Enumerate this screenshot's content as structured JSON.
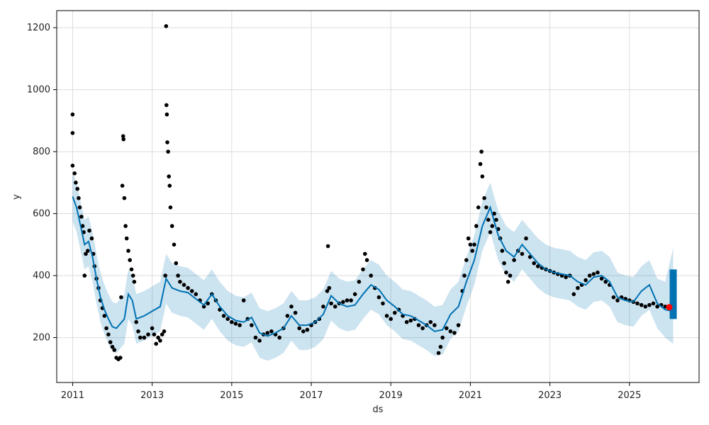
{
  "chart_data": {
    "type": "line",
    "xlabel": "ds",
    "ylabel": "y",
    "xlim": [
      2010.6,
      2026.75
    ],
    "ylim": [
      55,
      1255
    ],
    "x_ticks": [
      2011,
      2013,
      2015,
      2017,
      2019,
      2021,
      2023,
      2025
    ],
    "y_ticks": [
      200,
      400,
      600,
      800,
      1000,
      1200
    ],
    "grid": true,
    "colors": {
      "observed": "#000000",
      "forecast_line": "#0072B2",
      "uncertainty_band": "#0072B2",
      "highlight_point": "#ff0000"
    },
    "series": [
      {
        "kind": "observed",
        "points": [
          [
            2011.0,
            920
          ],
          [
            2011.0,
            860
          ],
          [
            2011.0,
            755
          ],
          [
            2011.05,
            730
          ],
          [
            2011.08,
            700
          ],
          [
            2011.12,
            680
          ],
          [
            2011.15,
            650
          ],
          [
            2011.18,
            620
          ],
          [
            2011.22,
            590
          ],
          [
            2011.25,
            560
          ],
          [
            2011.28,
            540
          ],
          [
            2011.3,
            400
          ],
          [
            2011.33,
            470
          ],
          [
            2011.38,
            480
          ],
          [
            2011.42,
            545
          ],
          [
            2011.48,
            520
          ],
          [
            2011.52,
            470
          ],
          [
            2011.55,
            430
          ],
          [
            2011.6,
            390
          ],
          [
            2011.65,
            360
          ],
          [
            2011.7,
            320
          ],
          [
            2011.75,
            295
          ],
          [
            2011.8,
            270
          ],
          [
            2011.85,
            230
          ],
          [
            2011.9,
            210
          ],
          [
            2011.95,
            185
          ],
          [
            2012.0,
            170
          ],
          [
            2012.05,
            160
          ],
          [
            2012.1,
            135
          ],
          [
            2012.15,
            130
          ],
          [
            2012.2,
            135
          ],
          [
            2012.22,
            330
          ],
          [
            2012.25,
            690
          ],
          [
            2012.27,
            850
          ],
          [
            2012.28,
            840
          ],
          [
            2012.3,
            650
          ],
          [
            2012.33,
            560
          ],
          [
            2012.36,
            520
          ],
          [
            2012.4,
            480
          ],
          [
            2012.44,
            450
          ],
          [
            2012.48,
            420
          ],
          [
            2012.52,
            400
          ],
          [
            2012.55,
            380
          ],
          [
            2012.6,
            250
          ],
          [
            2012.65,
            220
          ],
          [
            2012.7,
            200
          ],
          [
            2012.8,
            200
          ],
          [
            2012.9,
            210
          ],
          [
            2013.0,
            230
          ],
          [
            2013.05,
            210
          ],
          [
            2013.1,
            180
          ],
          [
            2013.15,
            200
          ],
          [
            2013.2,
            190
          ],
          [
            2013.25,
            210
          ],
          [
            2013.3,
            220
          ],
          [
            2013.33,
            400
          ],
          [
            2013.35,
            1205
          ],
          [
            2013.36,
            950
          ],
          [
            2013.37,
            920
          ],
          [
            2013.38,
            830
          ],
          [
            2013.4,
            800
          ],
          [
            2013.42,
            720
          ],
          [
            2013.44,
            690
          ],
          [
            2013.46,
            620
          ],
          [
            2013.5,
            560
          ],
          [
            2013.55,
            500
          ],
          [
            2013.6,
            440
          ],
          [
            2013.65,
            400
          ],
          [
            2013.7,
            380
          ],
          [
            2013.8,
            370
          ],
          [
            2013.9,
            360
          ],
          [
            2014.0,
            350
          ],
          [
            2014.1,
            340
          ],
          [
            2014.2,
            320
          ],
          [
            2014.3,
            300
          ],
          [
            2014.4,
            310
          ],
          [
            2014.5,
            340
          ],
          [
            2014.6,
            320
          ],
          [
            2014.7,
            290
          ],
          [
            2014.8,
            270
          ],
          [
            2014.9,
            260
          ],
          [
            2015.0,
            250
          ],
          [
            2015.1,
            245
          ],
          [
            2015.2,
            240
          ],
          [
            2015.3,
            320
          ],
          [
            2015.4,
            260
          ],
          [
            2015.5,
            240
          ],
          [
            2015.6,
            200
          ],
          [
            2015.7,
            190
          ],
          [
            2015.8,
            210
          ],
          [
            2015.9,
            215
          ],
          [
            2016.0,
            220
          ],
          [
            2016.1,
            210
          ],
          [
            2016.2,
            200
          ],
          [
            2016.3,
            230
          ],
          [
            2016.4,
            270
          ],
          [
            2016.5,
            300
          ],
          [
            2016.6,
            280
          ],
          [
            2016.7,
            230
          ],
          [
            2016.8,
            220
          ],
          [
            2016.9,
            225
          ],
          [
            2017.0,
            240
          ],
          [
            2017.1,
            250
          ],
          [
            2017.2,
            260
          ],
          [
            2017.3,
            300
          ],
          [
            2017.4,
            350
          ],
          [
            2017.42,
            495
          ],
          [
            2017.45,
            360
          ],
          [
            2017.5,
            310
          ],
          [
            2017.6,
            300
          ],
          [
            2017.7,
            310
          ],
          [
            2017.8,
            315
          ],
          [
            2017.9,
            320
          ],
          [
            2018.0,
            320
          ],
          [
            2018.1,
            340
          ],
          [
            2018.2,
            380
          ],
          [
            2018.3,
            420
          ],
          [
            2018.35,
            470
          ],
          [
            2018.4,
            450
          ],
          [
            2018.5,
            400
          ],
          [
            2018.6,
            360
          ],
          [
            2018.7,
            330
          ],
          [
            2018.8,
            310
          ],
          [
            2018.9,
            270
          ],
          [
            2019.0,
            260
          ],
          [
            2019.1,
            280
          ],
          [
            2019.2,
            290
          ],
          [
            2019.3,
            270
          ],
          [
            2019.4,
            250
          ],
          [
            2019.5,
            255
          ],
          [
            2019.6,
            260
          ],
          [
            2019.7,
            240
          ],
          [
            2019.8,
            230
          ],
          [
            2019.9,
            240
          ],
          [
            2020.0,
            250
          ],
          [
            2020.1,
            240
          ],
          [
            2020.2,
            150
          ],
          [
            2020.25,
            170
          ],
          [
            2020.3,
            200
          ],
          [
            2020.4,
            230
          ],
          [
            2020.5,
            220
          ],
          [
            2020.6,
            215
          ],
          [
            2020.7,
            240
          ],
          [
            2020.8,
            350
          ],
          [
            2020.85,
            400
          ],
          [
            2020.9,
            450
          ],
          [
            2020.95,
            520
          ],
          [
            2021.0,
            500
          ],
          [
            2021.05,
            480
          ],
          [
            2021.1,
            500
          ],
          [
            2021.15,
            560
          ],
          [
            2021.2,
            620
          ],
          [
            2021.25,
            760
          ],
          [
            2021.28,
            800
          ],
          [
            2021.3,
            720
          ],
          [
            2021.35,
            650
          ],
          [
            2021.4,
            620
          ],
          [
            2021.45,
            580
          ],
          [
            2021.5,
            540
          ],
          [
            2021.55,
            560
          ],
          [
            2021.6,
            600
          ],
          [
            2021.65,
            580
          ],
          [
            2021.7,
            550
          ],
          [
            2021.75,
            520
          ],
          [
            2021.8,
            480
          ],
          [
            2021.85,
            440
          ],
          [
            2021.9,
            410
          ],
          [
            2021.95,
            380
          ],
          [
            2022.0,
            400
          ],
          [
            2022.1,
            450
          ],
          [
            2022.2,
            480
          ],
          [
            2022.3,
            470
          ],
          [
            2022.4,
            520
          ],
          [
            2022.5,
            460
          ],
          [
            2022.6,
            440
          ],
          [
            2022.7,
            430
          ],
          [
            2022.8,
            425
          ],
          [
            2022.9,
            420
          ],
          [
            2023.0,
            415
          ],
          [
            2023.1,
            410
          ],
          [
            2023.2,
            405
          ],
          [
            2023.3,
            400
          ],
          [
            2023.4,
            395
          ],
          [
            2023.5,
            400
          ],
          [
            2023.6,
            340
          ],
          [
            2023.7,
            360
          ],
          [
            2023.8,
            370
          ],
          [
            2023.9,
            385
          ],
          [
            2024.0,
            400
          ],
          [
            2024.1,
            405
          ],
          [
            2024.2,
            410
          ],
          [
            2024.3,
            390
          ],
          [
            2024.4,
            380
          ],
          [
            2024.5,
            370
          ],
          [
            2024.6,
            330
          ],
          [
            2024.7,
            320
          ],
          [
            2024.8,
            330
          ],
          [
            2024.9,
            325
          ],
          [
            2025.0,
            320
          ],
          [
            2025.1,
            315
          ],
          [
            2025.2,
            310
          ],
          [
            2025.3,
            305
          ],
          [
            2025.4,
            300
          ],
          [
            2025.5,
            305
          ],
          [
            2025.6,
            310
          ],
          [
            2025.7,
            300
          ],
          [
            2025.8,
            305
          ],
          [
            2025.9,
            300
          ],
          [
            2026.0,
            298
          ]
        ]
      },
      {
        "kind": "forecast",
        "x": [
          2011.0,
          2011.1,
          2011.2,
          2011.3,
          2011.4,
          2011.5,
          2011.6,
          2011.7,
          2011.8,
          2011.9,
          2012.0,
          2012.1,
          2012.2,
          2012.3,
          2012.4,
          2012.5,
          2012.6,
          2012.8,
          2013.0,
          2013.2,
          2013.35,
          2013.5,
          2013.7,
          2013.9,
          2014.1,
          2014.3,
          2014.5,
          2014.7,
          2014.9,
          2015.1,
          2015.3,
          2015.5,
          2015.7,
          2015.9,
          2016.1,
          2016.3,
          2016.5,
          2016.7,
          2016.9,
          2017.1,
          2017.3,
          2017.5,
          2017.7,
          2017.9,
          2018.1,
          2018.3,
          2018.5,
          2018.7,
          2018.9,
          2019.1,
          2019.3,
          2019.5,
          2019.7,
          2019.9,
          2020.1,
          2020.3,
          2020.5,
          2020.7,
          2020.9,
          2021.1,
          2021.3,
          2021.5,
          2021.7,
          2021.9,
          2022.1,
          2022.3,
          2022.5,
          2022.7,
          2022.9,
          2023.1,
          2023.3,
          2023.5,
          2023.7,
          2023.9,
          2024.1,
          2024.3,
          2024.5,
          2024.7,
          2024.9,
          2025.1,
          2025.3,
          2025.5,
          2025.7,
          2025.9,
          2026.1
        ],
        "yhat": [
          655,
          620,
          560,
          500,
          510,
          460,
          390,
          330,
          290,
          260,
          235,
          230,
          245,
          260,
          340,
          320,
          260,
          270,
          285,
          300,
          390,
          360,
          350,
          345,
          325,
          305,
          340,
          300,
          270,
          255,
          250,
          265,
          215,
          205,
          215,
          230,
          270,
          240,
          240,
          250,
          275,
          335,
          310,
          300,
          305,
          340,
          370,
          355,
          320,
          300,
          275,
          270,
          255,
          240,
          220,
          225,
          275,
          300,
          380,
          450,
          560,
          620,
          530,
          480,
          460,
          500,
          470,
          440,
          420,
          410,
          405,
          400,
          380,
          370,
          395,
          400,
          380,
          330,
          320,
          315,
          350,
          370,
          310,
          290,
          285
        ],
        "yhat_lower": [
          575,
          540,
          480,
          420,
          430,
          380,
          310,
          250,
          210,
          180,
          155,
          150,
          165,
          180,
          260,
          240,
          180,
          190,
          205,
          220,
          310,
          280,
          270,
          265,
          245,
          225,
          260,
          220,
          190,
          175,
          170,
          185,
          135,
          125,
          135,
          150,
          190,
          160,
          160,
          170,
          195,
          255,
          230,
          220,
          225,
          260,
          290,
          275,
          240,
          220,
          195,
          190,
          175,
          160,
          140,
          145,
          195,
          220,
          300,
          370,
          480,
          540,
          450,
          400,
          380,
          420,
          390,
          360,
          340,
          330,
          325,
          320,
          300,
          290,
          315,
          320,
          300,
          250,
          240,
          235,
          270,
          290,
          230,
          200,
          180
        ],
        "yhat_upper": [
          735,
          700,
          640,
          580,
          590,
          540,
          470,
          410,
          370,
          340,
          315,
          310,
          325,
          340,
          420,
          400,
          340,
          350,
          365,
          380,
          470,
          440,
          430,
          425,
          405,
          385,
          420,
          380,
          350,
          335,
          330,
          345,
          295,
          285,
          295,
          310,
          350,
          320,
          320,
          330,
          355,
          415,
          390,
          380,
          385,
          420,
          450,
          435,
          400,
          380,
          355,
          350,
          335,
          320,
          300,
          305,
          355,
          380,
          460,
          530,
          640,
          700,
          610,
          560,
          540,
          580,
          550,
          520,
          500,
          490,
          485,
          480,
          460,
          450,
          475,
          480,
          460,
          410,
          400,
          395,
          430,
          450,
          390,
          380,
          490
        ]
      },
      {
        "kind": "forecast-range",
        "x": 2026.1,
        "low": 260,
        "high": 420
      },
      {
        "kind": "highlight",
        "x": 2026.0,
        "y": 298
      }
    ]
  }
}
